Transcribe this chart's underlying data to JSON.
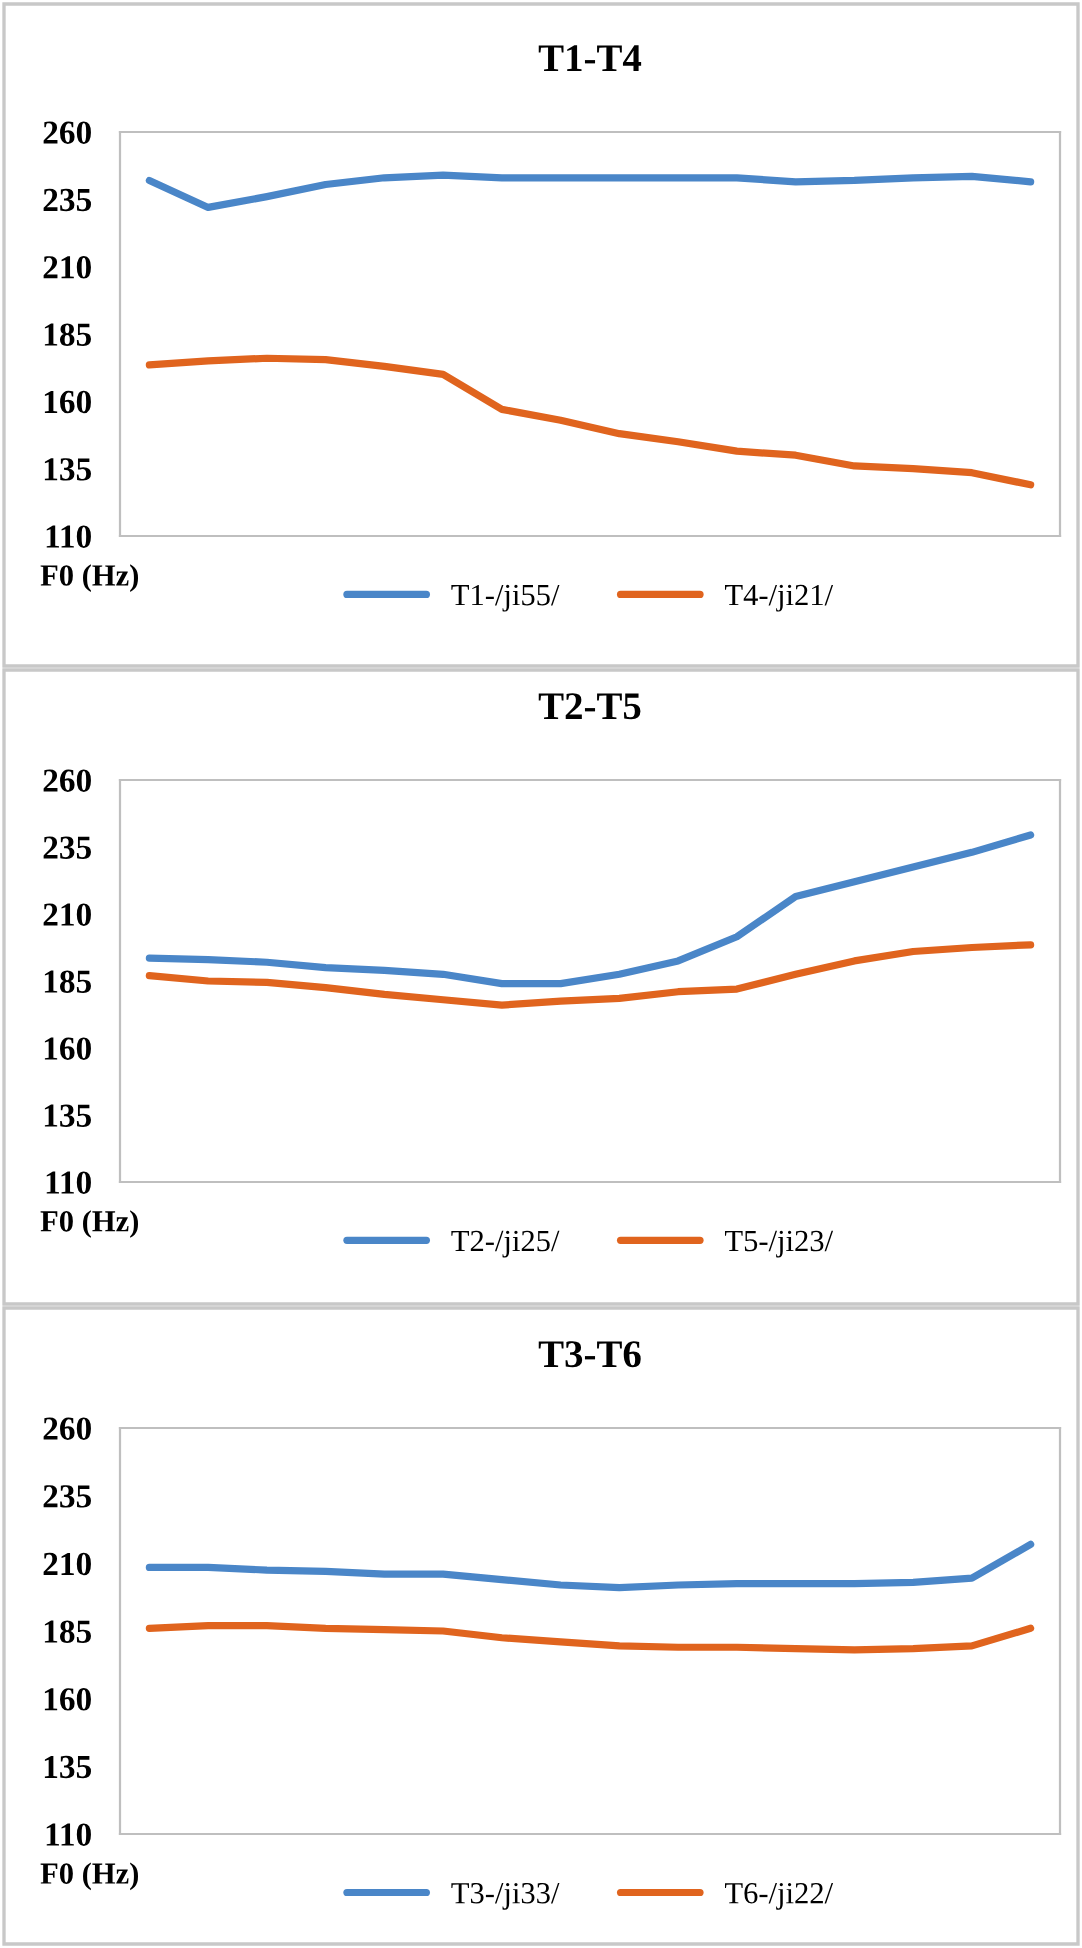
{
  "chart_data": [
    {
      "type": "line",
      "title": "T1-T4",
      "ylabel": "F0 (Hz)",
      "categories": [
        null,
        null,
        null,
        null,
        null,
        null,
        null,
        null,
        null,
        null,
        null,
        null,
        null,
        null,
        null,
        null
      ],
      "ylim": [
        110,
        260
      ],
      "yticks": [
        110,
        135,
        160,
        185,
        210,
        235,
        260
      ],
      "tick_labels": "y",
      "grid": false,
      "legend": "bottom",
      "line_style": "solid",
      "marker": "none",
      "series": [
        {
          "name": "T1-/ji55/",
          "color": "#4a86c8",
          "values": [
            242,
            232,
            236,
            240.5,
            243,
            244,
            243,
            243,
            243,
            243,
            243,
            241.5,
            242,
            243,
            243.5,
            241.5
          ]
        },
        {
          "name": "T4-/ji21/",
          "color": "#e0641e",
          "values": [
            173.5,
            175,
            176,
            175.5,
            173,
            170,
            157,
            153,
            148,
            145,
            141.5,
            140,
            136,
            135,
            133.5,
            129
          ]
        }
      ]
    },
    {
      "type": "line",
      "title": "T2-T5",
      "ylabel": "F0 (Hz)",
      "categories": [
        null,
        null,
        null,
        null,
        null,
        null,
        null,
        null,
        null,
        null,
        null,
        null,
        null,
        null,
        null,
        null
      ],
      "ylim": [
        110,
        260
      ],
      "yticks": [
        110,
        135,
        160,
        185,
        210,
        235,
        260
      ],
      "tick_labels": "y",
      "grid": false,
      "legend": "bottom",
      "line_style": "solid",
      "marker": "none",
      "series": [
        {
          "name": "T2-/ji25/",
          "color": "#4a86c8",
          "values": [
            193.5,
            193,
            192,
            190,
            189,
            187.5,
            184,
            184,
            187.5,
            192.5,
            201.5,
            216.5,
            222,
            227.5,
            233,
            239.5
          ]
        },
        {
          "name": "T5-/ji23/",
          "color": "#e0641e",
          "values": [
            187,
            185,
            184.5,
            182.5,
            180,
            178,
            176,
            177.5,
            178.5,
            181,
            182,
            187.5,
            192.5,
            196,
            197.5,
            198.5
          ]
        }
      ]
    },
    {
      "type": "line",
      "title": "T3-T6",
      "ylabel": "F0 (Hz)",
      "categories": [
        null,
        null,
        null,
        null,
        null,
        null,
        null,
        null,
        null,
        null,
        null,
        null,
        null,
        null,
        null,
        null
      ],
      "ylim": [
        110,
        260
      ],
      "yticks": [
        110,
        135,
        160,
        185,
        210,
        235,
        260
      ],
      "tick_labels": "y",
      "grid": false,
      "legend": "bottom",
      "line_style": "solid",
      "marker": "none",
      "series": [
        {
          "name": "T3-/ji33/",
          "color": "#4a86c8",
          "values": [
            208.5,
            208.5,
            207.5,
            207,
            206,
            206,
            204,
            202,
            201,
            202,
            202.5,
            202.5,
            202.5,
            203,
            204.5,
            217
          ]
        },
        {
          "name": "T6-/ji22/",
          "color": "#e0641e",
          "values": [
            186,
            187,
            187,
            186,
            185.5,
            185,
            182.5,
            181,
            179.5,
            179,
            179,
            178.5,
            178,
            178.5,
            179.5,
            186
          ]
        }
      ]
    }
  ]
}
